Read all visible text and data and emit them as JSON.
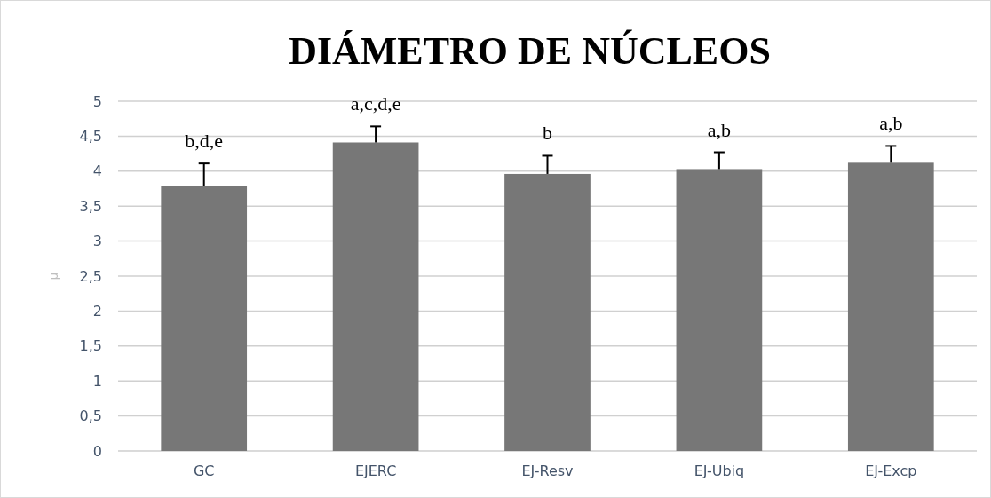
{
  "chart_data": {
    "type": "bar",
    "title": "DIÁMETRO DE NÚCLEOS",
    "ylabel": "μ",
    "categories": [
      "GC",
      "EJERC",
      "EJ-Resv",
      "EJ-Ubiq",
      "EJ-Excp"
    ],
    "values": [
      3.79,
      4.41,
      3.96,
      4.03,
      4.12
    ],
    "errors": [
      [
        3.79,
        4.11
      ],
      [
        4.41,
        4.64
      ],
      [
        3.96,
        4.22
      ],
      [
        4.03,
        4.27
      ],
      [
        4.12,
        4.36
      ]
    ],
    "color": "#777777",
    "ylim": [
      0,
      5
    ],
    "yticks": [
      0,
      {
        "value": 0.5,
        "label": "0,5"
      },
      1,
      {
        "value": 1.5,
        "label": "1,5"
      },
      2,
      {
        "value": 2.5,
        "label": "2,5"
      },
      3,
      {
        "value": 3.5,
        "label": "3,5"
      },
      4,
      {
        "value": 4.5,
        "label": "4,5"
      },
      5
    ],
    "grid": "y",
    "annotations": [
      {
        "text": "b,d,e",
        "x": "GC",
        "y": 4.11
      },
      {
        "text": "a,c,d,e",
        "x": "EJERC",
        "y": 4.64
      },
      {
        "text": "b",
        "x": "EJ-Resv",
        "y": 4.22
      },
      {
        "text": "a,b",
        "x": "EJ-Ubiq",
        "y": 4.27
      },
      {
        "text": "a,b",
        "x": "EJ-Excp",
        "y": 4.36
      }
    ]
  }
}
